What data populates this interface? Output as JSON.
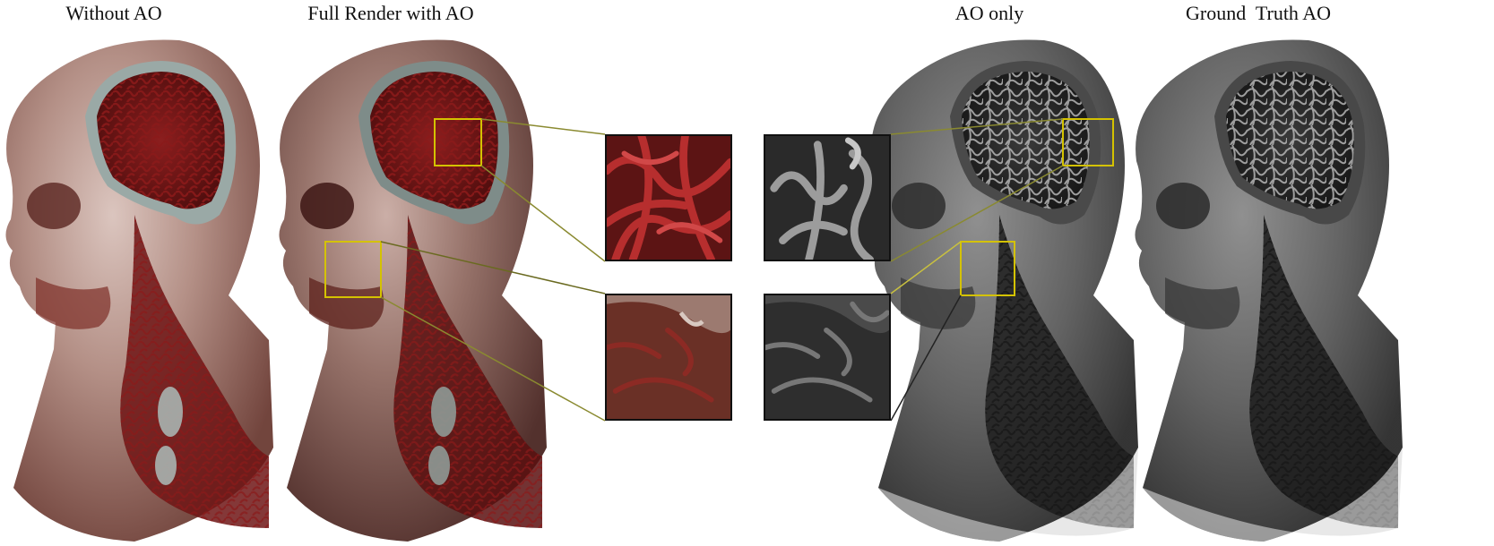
{
  "panels": [
    {
      "title": "Without AO"
    },
    {
      "title": "Full Render with AO"
    },
    {
      "title": "AO only"
    },
    {
      "title": "Ground  Truth AO"
    }
  ]
}
